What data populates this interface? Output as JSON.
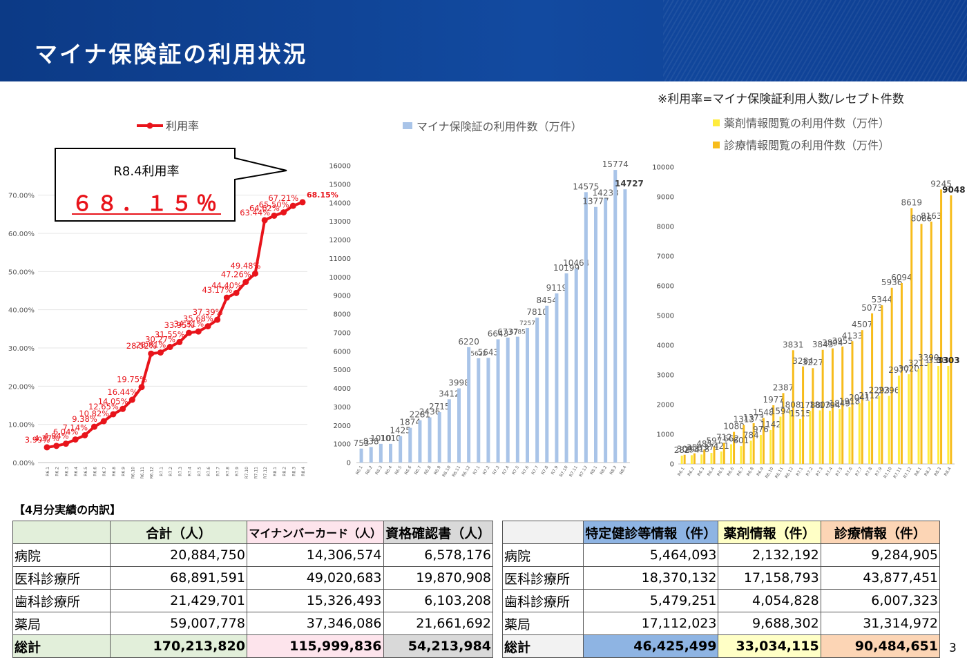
{
  "header": {
    "title": "マイナ保険証の利用状況"
  },
  "note": "※利用率=マイナ保険証利用人数/レセプト件数",
  "callout": {
    "label": "R8.4利用率",
    "value": "６８．１５％"
  },
  "months": [
    "R6.1",
    "R6.2",
    "R6.3",
    "R6.4",
    "R6.5",
    "R6.6",
    "R6.7",
    "R6.8",
    "R6.9",
    "R6.10",
    "R6.11",
    "R6.12",
    "R7.1",
    "R7.2",
    "R7.3",
    "R7.4",
    "R7.5",
    "R7.6",
    "R7.7",
    "R7.8",
    "R7.9",
    "R7.10",
    "R7.11",
    "R7.12",
    "R8.1",
    "R8.2",
    "R8.3",
    "R8.4"
  ],
  "chart_data": [
    {
      "type": "line",
      "legend": [
        "利用率"
      ],
      "series": [
        {
          "name": "利用率",
          "color": "#e8141b",
          "values": [
            3.99,
            4.37,
            4.94,
            6.04,
            7.14,
            9.38,
            10.82,
            12.65,
            14.05,
            16.44,
            19.75,
            28.52,
            28.81,
            30.27,
            31.55,
            33.95,
            34.31,
            35.68,
            37.39,
            43.17,
            44.4,
            47.26,
            49.48,
            63.44,
            64.62,
            65.5,
            67.21,
            68.15
          ]
        }
      ],
      "labels": [
        "3.99%",
        "4.37%",
        "4.94%",
        "6.04%",
        "7.14%",
        "9.38%",
        "10.82%",
        "12.65%",
        "14.05%",
        "16.44%",
        "19.75%",
        "28.52%",
        "28.81%",
        "30.27%",
        "31.55%",
        "33.95%",
        "34.31%",
        "35.68%",
        "37.39%",
        "43.17%",
        "44.40%",
        "47.26%",
        "49.48%",
        "63.44%",
        "64.62%",
        "65.50%",
        "67.21%",
        "68.15%"
      ],
      "yticks": [
        "0.00%",
        "10.00%",
        "20.00%",
        "30.00%",
        "40.00%",
        "50.00%",
        "60.00%",
        "70.00%"
      ],
      "ylim": [
        0,
        75
      ]
    },
    {
      "type": "bar",
      "legend": [
        "マイナ保険証の利用件数（万件）"
      ],
      "series": [
        {
          "name": "マイナ保険証の利用件数（万件）",
          "color": "#a9c4e8",
          "values": [
            753,
            838,
            1010,
            1010,
            1425,
            1874,
            2281,
            2436,
            2715,
            3412,
            3998,
            6220,
            5622,
            5643,
            6643,
            6737,
            6785,
            7257,
            7810,
            8454,
            9119,
            10199,
            10464,
            14575,
            13777,
            14238,
            15774,
            14727
          ]
        }
      ],
      "yticks": [
        "0",
        "1000",
        "2000",
        "3000",
        "4000",
        "5000",
        "6000",
        "7000",
        "8000",
        "9000",
        "10000",
        "11000",
        "12000",
        "13000",
        "14000",
        "15000",
        "16000"
      ],
      "ylim": [
        0,
        16000
      ]
    },
    {
      "type": "bar",
      "legend": [
        "薬剤情報閲覧の利用件数（万件）",
        "診療情報閲覧の利用件数（万件）"
      ],
      "series": [
        {
          "name": "薬剤情報閲覧の利用件数（万件）",
          "color": "#ffec3d",
          "values": [
            282,
            294,
            318,
            371,
            421,
            662,
            601,
            784,
            976,
            1142,
            1594,
            1808,
            1515,
            1788,
            1803,
            1794,
            1849,
            1918,
            2041,
            2112,
            2293,
            2296,
            2977,
            3020,
            3213,
            3390,
            3303,
            3303
          ]
        },
        {
          "name": "診療情報閲覧の利用件数（万件）",
          "color": "#f7bc1b",
          "values": [
            309,
            358,
            485,
            597,
            712,
            1080,
            1313,
            1373,
            1548,
            1977,
            2387,
            3831,
            3284,
            3227,
            3843,
            3894,
            3955,
            4133,
            4507,
            5073,
            5344,
            5936,
            6094,
            8619,
            8086,
            8163,
            9245,
            9048
          ]
        }
      ],
      "yticks": [
        "0",
        "1000",
        "2000",
        "3000",
        "4000",
        "5000",
        "6000",
        "7000",
        "8000",
        "9000",
        "10000"
      ],
      "ylim": [
        0,
        10000
      ]
    }
  ],
  "section_title": "【4月分実績の内訳】",
  "table1": {
    "headers": [
      "",
      "合計（人）",
      "マイナンバーカード（人）",
      "資格確認書（人）"
    ],
    "header_colors": [
      "#e2efda",
      "#e2efda",
      "#fde4ec",
      "#d9d9d9"
    ],
    "rows": [
      [
        "病院",
        "20,884,750",
        "14,306,574",
        "6,578,176"
      ],
      [
        "医科診療所",
        "68,891,591",
        "49,020,683",
        "19,870,908"
      ],
      [
        "歯科診療所",
        "21,429,701",
        "15,326,493",
        "6,103,208"
      ],
      [
        "薬局",
        "59,007,778",
        "37,346,086",
        "21,661,692"
      ]
    ],
    "total": [
      "総計",
      "170,213,820",
      "115,999,836",
      "54,213,984"
    ]
  },
  "table2": {
    "headers": [
      "",
      "特定健診等情報（件）",
      "薬剤情報（件）",
      "診療情報（件）"
    ],
    "header_colors": [
      "#f2f2f2",
      "#8eb4e3",
      "#ffffc6",
      "#fcd5b5"
    ],
    "rows": [
      [
        "病院",
        "5,464,093",
        "2,132,192",
        "9,284,905"
      ],
      [
        "医科診療所",
        "18,370,132",
        "17,158,793",
        "43,877,451"
      ],
      [
        "歯科診療所",
        "5,479,251",
        "4,054,828",
        "6,007,323"
      ],
      [
        "薬局",
        "17,112,023",
        "9,688,302",
        "31,314,972"
      ]
    ],
    "total": [
      "総計",
      "46,425,499",
      "33,034,115",
      "90,484,651"
    ]
  },
  "page_number": "3"
}
